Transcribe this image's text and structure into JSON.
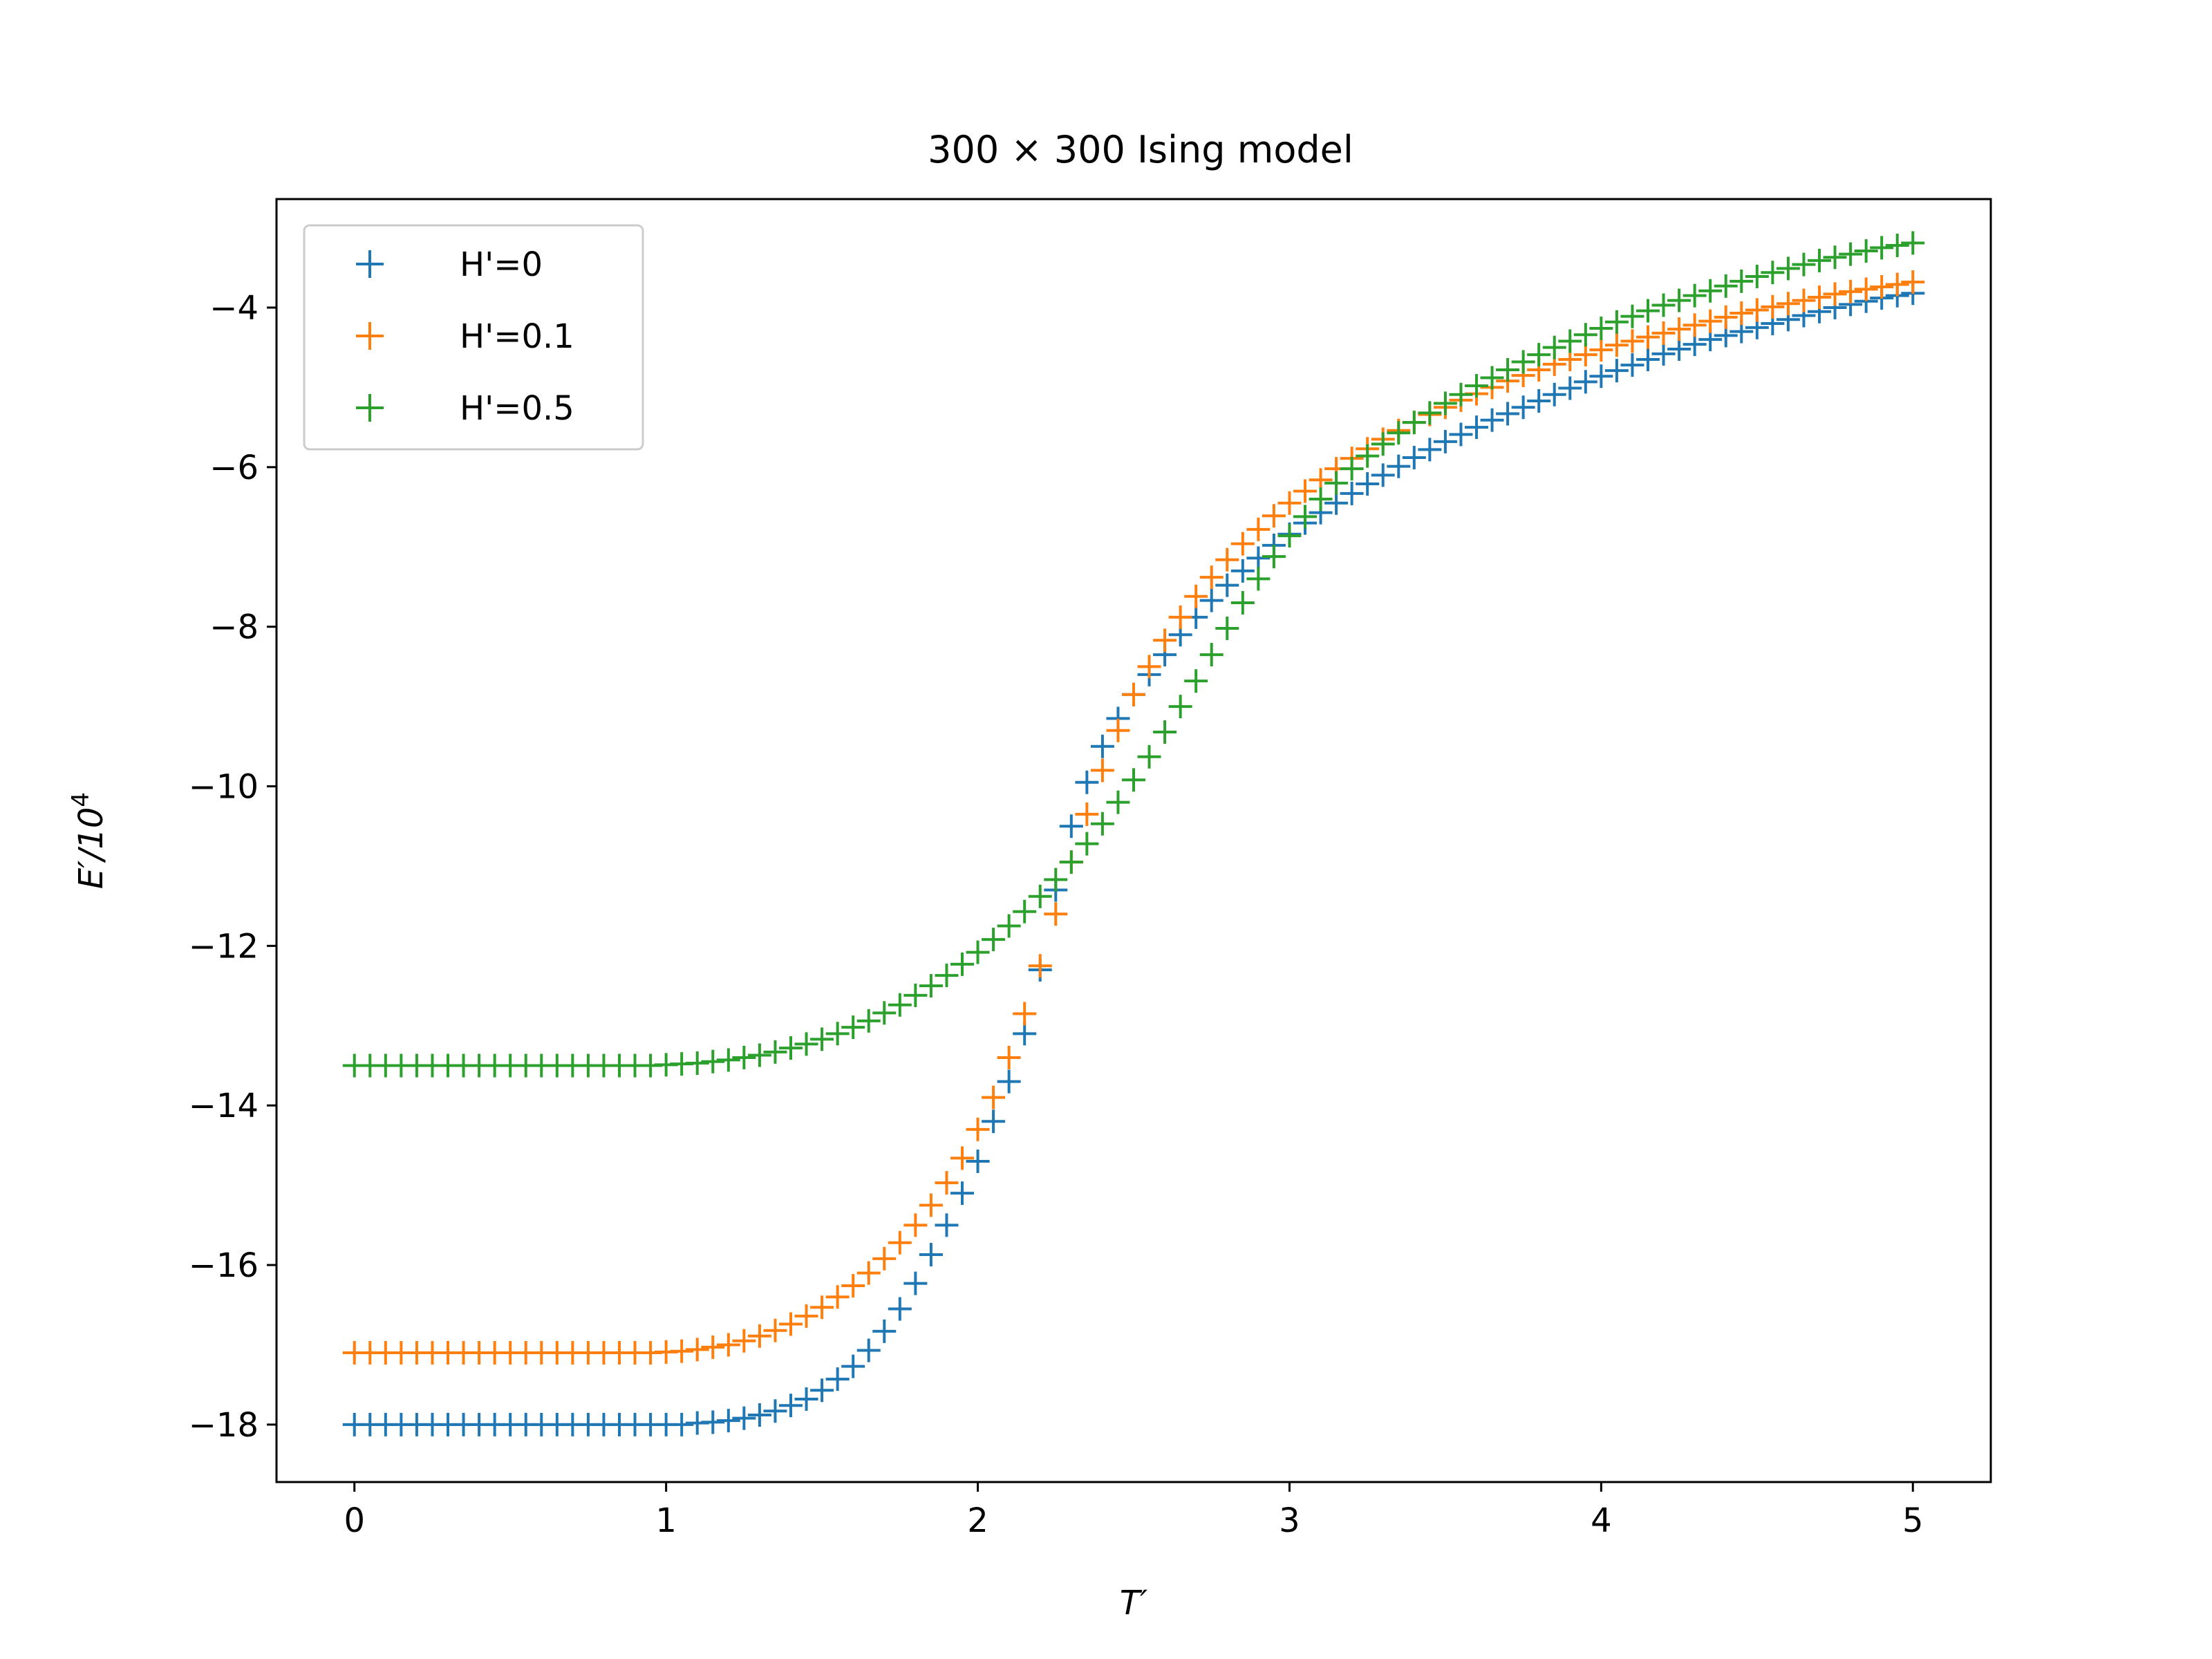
{
  "chart_data": {
    "type": "scatter",
    "title": "300 × 300 Ising model",
    "xlabel": "T′",
    "ylabel_base": "E′/10",
    "ylabel_exp": "4",
    "xlim": [
      -0.25,
      5.25
    ],
    "ylim": [
      -18.72,
      -2.64
    ],
    "xticks": [
      0,
      1,
      2,
      3,
      4,
      5
    ],
    "xtick_labels": [
      "0",
      "1",
      "2",
      "3",
      "4",
      "5"
    ],
    "yticks": [
      -18,
      -16,
      -14,
      -12,
      -10,
      -8,
      -6,
      -4
    ],
    "ytick_labels": [
      "−18",
      "−16",
      "−14",
      "−12",
      "−10",
      "−8",
      "−6",
      "−4"
    ],
    "grid": false,
    "legend_position": "top-left",
    "marker": "+",
    "x_start": 0,
    "x_step": 0.05,
    "series": [
      {
        "name": "H'=0",
        "color": "#1f77b4",
        "values": [
          -18,
          -18,
          -18,
          -18,
          -18,
          -18,
          -18,
          -18,
          -18,
          -18,
          -18,
          -18,
          -18,
          -18,
          -18,
          -18,
          -18,
          -18,
          -18,
          -18,
          -18,
          -18,
          -17.98,
          -17.97,
          -17.95,
          -17.92,
          -17.88,
          -17.83,
          -17.76,
          -17.68,
          -17.57,
          -17.43,
          -17.27,
          -17.07,
          -16.83,
          -16.55,
          -16.23,
          -15.87,
          -15.5,
          -15.1,
          -14.7,
          -14.2,
          -13.7,
          -13.1,
          -12.3,
          -11.3,
          -10.5,
          -9.95,
          -9.5,
          -9.15,
          -8.85,
          -8.6,
          -8.35,
          -8.1,
          -7.88,
          -7.67,
          -7.48,
          -7.3,
          -7.14,
          -6.98,
          -6.84,
          -6.7,
          -6.57,
          -6.45,
          -6.33,
          -6.21,
          -6.1,
          -5.99,
          -5.88,
          -5.78,
          -5.68,
          -5.59,
          -5.5,
          -5.41,
          -5.33,
          -5.25,
          -5.17,
          -5.09,
          -5.01,
          -4.93,
          -4.86,
          -4.79,
          -4.72,
          -4.65,
          -4.58,
          -4.52,
          -4.46,
          -4.4,
          -4.35,
          -4.3,
          -4.25,
          -4.2,
          -4.15,
          -4.1,
          -4.05,
          -4.0,
          -3.96,
          -3.92,
          -3.88,
          -3.85,
          -3.82
        ]
      },
      {
        "name": "H'=0.1",
        "color": "#ff7f0e",
        "values": [
          -17.1,
          -17.1,
          -17.1,
          -17.1,
          -17.1,
          -17.1,
          -17.1,
          -17.1,
          -17.1,
          -17.1,
          -17.1,
          -17.1,
          -17.1,
          -17.1,
          -17.1,
          -17.1,
          -17.1,
          -17.1,
          -17.1,
          -17.1,
          -17.09,
          -17.08,
          -17.06,
          -17.03,
          -17.0,
          -16.95,
          -16.89,
          -16.82,
          -16.74,
          -16.64,
          -16.53,
          -16.4,
          -16.26,
          -16.1,
          -15.92,
          -15.72,
          -15.5,
          -15.25,
          -14.97,
          -14.66,
          -14.3,
          -13.9,
          -13.4,
          -12.85,
          -12.25,
          -11.6,
          -10.95,
          -10.35,
          -9.8,
          -9.3,
          -8.85,
          -8.5,
          -8.17,
          -7.88,
          -7.62,
          -7.38,
          -7.16,
          -6.96,
          -6.78,
          -6.61,
          -6.45,
          -6.3,
          -6.16,
          -6.02,
          -5.89,
          -5.77,
          -5.65,
          -5.54,
          -5.44,
          -5.34,
          -5.25,
          -5.16,
          -5.08,
          -5.0,
          -4.92,
          -4.85,
          -4.78,
          -4.71,
          -4.65,
          -4.59,
          -4.53,
          -4.47,
          -4.42,
          -4.37,
          -4.32,
          -4.27,
          -4.22,
          -4.17,
          -4.12,
          -4.07,
          -4.03,
          -3.99,
          -3.95,
          -3.91,
          -3.87,
          -3.83,
          -3.8,
          -3.77,
          -3.74,
          -3.71,
          -3.68
        ]
      },
      {
        "name": "H'=0.5",
        "color": "#2ca02c",
        "values": [
          -13.5,
          -13.5,
          -13.5,
          -13.5,
          -13.5,
          -13.5,
          -13.5,
          -13.5,
          -13.5,
          -13.5,
          -13.5,
          -13.5,
          -13.5,
          -13.5,
          -13.5,
          -13.5,
          -13.5,
          -13.5,
          -13.5,
          -13.5,
          -13.49,
          -13.48,
          -13.47,
          -13.45,
          -13.43,
          -13.4,
          -13.37,
          -13.33,
          -13.28,
          -13.23,
          -13.17,
          -13.1,
          -13.02,
          -12.94,
          -12.84,
          -12.74,
          -12.62,
          -12.5,
          -12.37,
          -12.23,
          -12.08,
          -11.92,
          -11.75,
          -11.57,
          -11.38,
          -11.17,
          -10.95,
          -10.72,
          -10.47,
          -10.2,
          -9.92,
          -9.63,
          -9.32,
          -9.0,
          -8.68,
          -8.35,
          -8.02,
          -7.7,
          -7.4,
          -7.12,
          -6.86,
          -6.62,
          -6.4,
          -6.2,
          -6.02,
          -5.86,
          -5.71,
          -5.57,
          -5.44,
          -5.32,
          -5.2,
          -5.09,
          -4.98,
          -4.88,
          -4.78,
          -4.68,
          -4.59,
          -4.5,
          -4.42,
          -4.34,
          -4.26,
          -4.18,
          -4.11,
          -4.04,
          -3.97,
          -3.91,
          -3.85,
          -3.79,
          -3.73,
          -3.67,
          -3.61,
          -3.56,
          -3.51,
          -3.46,
          -3.41,
          -3.37,
          -3.33,
          -3.29,
          -3.25,
          -3.22,
          -3.19
        ]
      }
    ]
  }
}
